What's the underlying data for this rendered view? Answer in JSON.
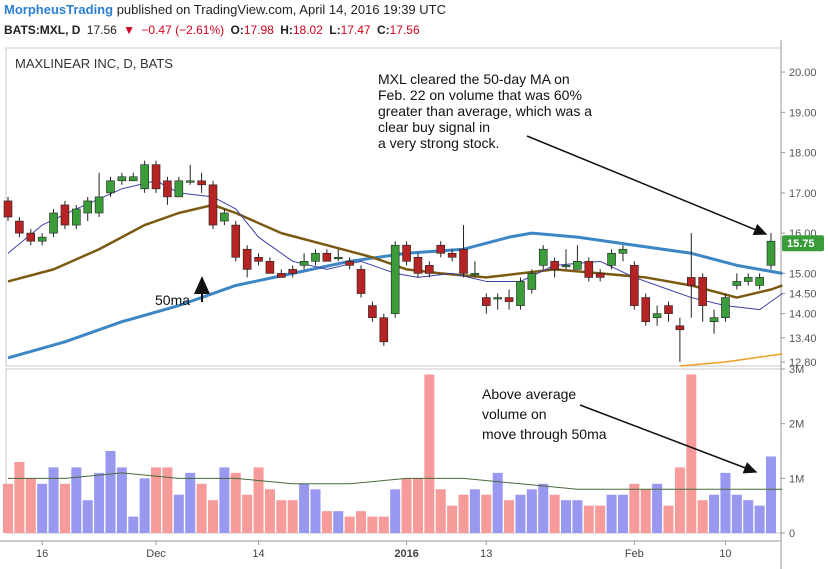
{
  "header": {
    "author": "MorpheusTrading",
    "published": "published on TradingView.com, April 14, 2016 19:39 UTC",
    "symbol": "BATS:MXL, D",
    "last": "17.56",
    "change": "−0.47 (−2.61%)",
    "o_label": "O:",
    "o_val": "17.98",
    "h_label": "H:",
    "h_val": "18.02",
    "l_label": "L:",
    "l_val": "17.47",
    "c_label": "C:",
    "c_val": "17.56"
  },
  "chart_label": "MAXLINEAR INC, D, BATS",
  "annotations": {
    "top": "MXL cleared the 50-day MA on\nFeb. 22 on volume that was 60%\ngreater than average, which was a\nclear buy signal in\na very strong stock.",
    "ma_label": "50ma",
    "volume": "Above average\nvolume on\nmove through 50ma"
  },
  "colors": {
    "up": "#3a9d3a",
    "down": "#b52323",
    "ma50": "#3d86c6",
    "ma20": "#7a5a10",
    "ma10": "#3b3fa6",
    "ma200": "#f0a020",
    "vol_up": "#9898f0",
    "vol_down": "#f79a9a",
    "vol_ma": "#4a6a3a",
    "last_badge": "#3a9d3a"
  },
  "chart_data": {
    "type": "candlestick",
    "price_axis": {
      "ylim": [
        12.7,
        20.3
      ],
      "ticks": [
        12.8,
        13.4,
        14.0,
        14.5,
        15.0,
        16.0,
        17.0,
        18.0,
        19.0,
        20.0
      ],
      "tick_labels": [
        "12.80",
        "13.40",
        "14.00",
        "14.50",
        "15.00",
        "16.00",
        "17.00",
        "18.00",
        "19.00",
        "20.00"
      ],
      "last_price_label": "15.75",
      "last_price": 15.75
    },
    "volume_axis": {
      "ylim": [
        0,
        3
      ],
      "ticks": [
        0,
        1,
        2,
        3
      ],
      "tick_labels": [
        "0",
        "1M",
        "2M",
        "3M"
      ]
    },
    "x_ticks": [
      {
        "i": 3,
        "label": "16"
      },
      {
        "i": 13,
        "label": "Dec"
      },
      {
        "i": 22,
        "label": "14"
      },
      {
        "i": 35,
        "label": "2016"
      },
      {
        "i": 42,
        "label": "13"
      },
      {
        "i": 55,
        "label": "Feb"
      },
      {
        "i": 63,
        "label": "10"
      }
    ],
    "candles": [
      [
        16.8,
        16.4,
        16.9,
        16.3
      ],
      [
        16.3,
        16.0,
        16.4,
        15.9
      ],
      [
        16.0,
        15.8,
        16.1,
        15.7
      ],
      [
        15.8,
        15.9,
        16.0,
        15.7
      ],
      [
        16.0,
        16.5,
        16.6,
        15.9
      ],
      [
        16.7,
        16.2,
        16.8,
        16.1
      ],
      [
        16.2,
        16.6,
        16.7,
        16.1
      ],
      [
        16.5,
        16.8,
        16.9,
        16.3
      ],
      [
        16.5,
        16.9,
        17.5,
        16.4
      ],
      [
        17.0,
        17.3,
        17.4,
        16.9
      ],
      [
        17.3,
        17.4,
        17.5,
        17.2
      ],
      [
        17.3,
        17.4,
        17.5,
        17.3
      ],
      [
        17.1,
        17.7,
        17.8,
        17.0
      ],
      [
        17.7,
        17.1,
        17.8,
        17.0
      ],
      [
        17.3,
        16.9,
        17.4,
        16.7
      ],
      [
        16.9,
        17.3,
        17.4,
        16.9
      ],
      [
        17.3,
        17.3,
        17.7,
        17.2
      ],
      [
        17.3,
        17.2,
        17.5,
        17.0
      ],
      [
        17.2,
        16.2,
        17.3,
        16.1
      ],
      [
        16.3,
        16.5,
        16.6,
        16.2
      ],
      [
        16.2,
        15.4,
        16.3,
        15.3
      ],
      [
        15.6,
        15.1,
        15.7,
        14.9
      ],
      [
        15.4,
        15.3,
        15.5,
        15.2
      ],
      [
        15.3,
        15.0,
        15.4,
        15.0
      ],
      [
        15.0,
        14.9,
        15.1,
        14.9
      ],
      [
        15.1,
        15.0,
        15.2,
        14.9
      ],
      [
        15.2,
        15.3,
        15.5,
        15.1
      ],
      [
        15.3,
        15.5,
        15.6,
        15.2
      ],
      [
        15.5,
        15.3,
        15.6,
        15.3
      ],
      [
        15.4,
        15.4,
        15.6,
        15.3
      ],
      [
        15.3,
        15.2,
        15.4,
        15.1
      ],
      [
        15.1,
        14.5,
        15.2,
        14.4
      ],
      [
        14.2,
        13.9,
        14.3,
        13.8
      ],
      [
        13.9,
        13.3,
        14.0,
        13.2
      ],
      [
        14.0,
        15.7,
        15.8,
        13.9
      ],
      [
        15.7,
        15.3,
        15.8,
        15.2
      ],
      [
        15.4,
        15.0,
        15.5,
        14.9
      ],
      [
        15.2,
        15.0,
        15.3,
        14.9
      ],
      [
        15.7,
        15.5,
        15.8,
        15.4
      ],
      [
        15.5,
        15.4,
        15.6,
        15.3
      ],
      [
        15.6,
        15.0,
        16.2,
        14.9
      ],
      [
        15.0,
        15.0,
        15.3,
        14.9
      ],
      [
        14.4,
        14.2,
        14.5,
        14.0
      ],
      [
        14.4,
        14.4,
        14.5,
        14.1
      ],
      [
        14.4,
        14.3,
        14.6,
        14.1
      ],
      [
        14.2,
        14.8,
        14.9,
        14.1
      ],
      [
        14.6,
        15.0,
        15.1,
        14.5
      ],
      [
        15.2,
        15.6,
        15.7,
        15.1
      ],
      [
        15.3,
        15.1,
        15.4,
        14.9
      ],
      [
        15.2,
        15.2,
        15.6,
        15.1
      ],
      [
        15.1,
        15.3,
        15.7,
        15.1
      ],
      [
        15.3,
        14.9,
        15.4,
        14.8
      ],
      [
        15.0,
        14.9,
        15.1,
        14.8
      ],
      [
        15.2,
        15.5,
        15.6,
        15.1
      ],
      [
        15.5,
        15.6,
        15.7,
        15.3
      ],
      [
        15.2,
        14.2,
        15.3,
        14.1
      ],
      [
        14.4,
        13.8,
        14.5,
        13.7
      ],
      [
        13.9,
        14.0,
        14.2,
        13.7
      ],
      [
        14.2,
        14.0,
        14.3,
        13.8
      ],
      [
        13.7,
        13.6,
        13.9,
        12.8
      ],
      [
        14.9,
        14.7,
        16.0,
        13.9
      ],
      [
        14.9,
        14.2,
        15.0,
        13.8
      ],
      [
        13.8,
        13.9,
        14.1,
        13.5
      ],
      [
        13.9,
        14.4,
        14.5,
        13.8
      ],
      [
        14.7,
        14.8,
        15.0,
        14.6
      ],
      [
        14.8,
        14.9,
        15.0,
        14.7
      ],
      [
        14.7,
        14.9,
        15.0,
        14.6
      ],
      [
        15.2,
        15.8,
        16.0,
        15.1
      ]
    ],
    "volume": [
      0.9,
      1.3,
      1.0,
      0.9,
      1.2,
      0.9,
      1.2,
      0.6,
      1.1,
      1.5,
      1.2,
      0.3,
      1.0,
      1.2,
      1.2,
      0.7,
      1.1,
      0.9,
      0.6,
      1.2,
      1.1,
      0.7,
      1.2,
      0.8,
      0.6,
      0.6,
      0.9,
      0.8,
      0.4,
      0.4,
      0.3,
      0.4,
      0.3,
      0.3,
      0.8,
      1.0,
      1.0,
      2.9,
      0.8,
      0.5,
      0.7,
      0.8,
      0.7,
      1.1,
      0.6,
      0.7,
      0.8,
      0.9,
      0.7,
      0.6,
      0.6,
      0.5,
      0.5,
      0.7,
      0.7,
      0.9,
      0.8,
      0.9,
      0.5,
      1.2,
      2.9,
      0.6,
      0.7,
      1.1,
      0.7,
      0.6,
      0.5,
      1.4
    ],
    "series": [
      {
        "key": "ma50",
        "points": [
          [
            0,
            12.9
          ],
          [
            5,
            13.3
          ],
          [
            10,
            13.8
          ],
          [
            15,
            14.2
          ],
          [
            20,
            14.7
          ],
          [
            25,
            15.0
          ],
          [
            30,
            15.3
          ],
          [
            35,
            15.5
          ],
          [
            40,
            15.6
          ],
          [
            44,
            15.9
          ],
          [
            46,
            16.0
          ],
          [
            50,
            15.9
          ],
          [
            55,
            15.7
          ],
          [
            60,
            15.5
          ],
          [
            64,
            15.2
          ],
          [
            68,
            15.0
          ]
        ]
      },
      {
        "key": "ma20",
        "points": [
          [
            0,
            14.8
          ],
          [
            4,
            15.1
          ],
          [
            8,
            15.6
          ],
          [
            12,
            16.2
          ],
          [
            15,
            16.5
          ],
          [
            18,
            16.7
          ],
          [
            20,
            16.5
          ],
          [
            24,
            16.0
          ],
          [
            28,
            15.7
          ],
          [
            32,
            15.4
          ],
          [
            35,
            15.1
          ],
          [
            38,
            15.0
          ],
          [
            42,
            14.9
          ],
          [
            48,
            15.1
          ],
          [
            52,
            15.0
          ],
          [
            56,
            14.9
          ],
          [
            60,
            14.7
          ],
          [
            64,
            14.4
          ],
          [
            67,
            14.6
          ],
          [
            68,
            14.7
          ]
        ]
      },
      {
        "key": "ma10",
        "points": [
          [
            0,
            15.5
          ],
          [
            3,
            16.2
          ],
          [
            6,
            16.6
          ],
          [
            10,
            17.1
          ],
          [
            13,
            17.3
          ],
          [
            15,
            17.0
          ],
          [
            18,
            16.9
          ],
          [
            20,
            16.6
          ],
          [
            22,
            15.9
          ],
          [
            25,
            15.3
          ],
          [
            28,
            15.1
          ],
          [
            31,
            15.3
          ],
          [
            34,
            15.0
          ],
          [
            36,
            14.9
          ],
          [
            39,
            15.0
          ],
          [
            42,
            14.8
          ],
          [
            45,
            14.8
          ],
          [
            48,
            15.2
          ],
          [
            52,
            15.3
          ],
          [
            55,
            14.9
          ],
          [
            58,
            14.6
          ],
          [
            60,
            14.4
          ],
          [
            63,
            14.2
          ],
          [
            66,
            14.1
          ],
          [
            68,
            14.5
          ]
        ]
      },
      {
        "key": "ma200",
        "points": [
          [
            59,
            12.7
          ],
          [
            63,
            12.8
          ],
          [
            68,
            13.0
          ]
        ]
      }
    ],
    "volume_ma": [
      [
        0,
        1.0
      ],
      [
        5,
        1.0
      ],
      [
        10,
        1.1
      ],
      [
        15,
        1.0
      ],
      [
        20,
        1.0
      ],
      [
        25,
        0.9
      ],
      [
        30,
        0.9
      ],
      [
        35,
        1.0
      ],
      [
        40,
        1.0
      ],
      [
        45,
        0.9
      ],
      [
        50,
        0.8
      ],
      [
        55,
        0.8
      ],
      [
        60,
        0.8
      ],
      [
        65,
        0.8
      ],
      [
        68,
        0.8
      ]
    ]
  }
}
